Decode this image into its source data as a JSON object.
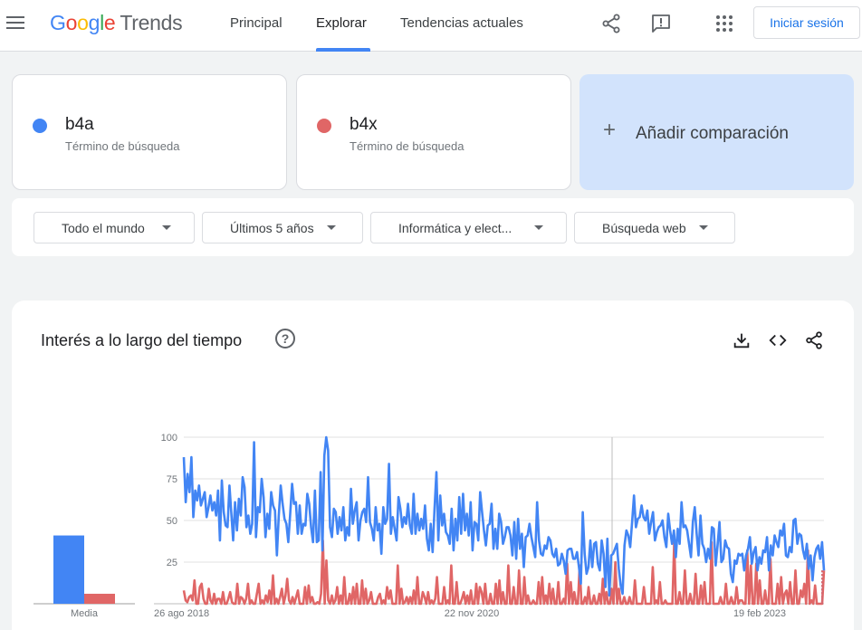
{
  "header": {
    "logo_google": "Google",
    "logo_trends": "Trends",
    "nav": [
      {
        "label": "Principal",
        "active": false
      },
      {
        "label": "Explorar",
        "active": true
      },
      {
        "label": "Tendencias actuales",
        "active": false
      }
    ],
    "signin_label": "Iniciar sesión",
    "icons": [
      "menu-icon",
      "share-icon",
      "feedback-icon",
      "apps-icon"
    ]
  },
  "terms": [
    {
      "name": "b4a",
      "type": "Término de búsqueda",
      "color": "#4285f4"
    },
    {
      "name": "b4x",
      "type": "Término de búsqueda",
      "color": "#e06666"
    }
  ],
  "add_comparison": "Añadir comparación",
  "filters": [
    {
      "label": "Todo el mundo"
    },
    {
      "label": "Últimos 5 años"
    },
    {
      "label": "Informática y elect..."
    },
    {
      "label": "Búsqueda web"
    }
  ],
  "chart_section": {
    "title": "Interés a lo largo del tiempo",
    "help_glyph": "?",
    "icons": [
      "download-icon",
      "embed-icon",
      "share-icon"
    ]
  },
  "chart_data": {
    "type": "line",
    "average_label": "Media",
    "averages": [
      {
        "term": "b4a",
        "value": 41
      },
      {
        "term": "b4x",
        "value": 6
      }
    ],
    "ylim": [
      0,
      100
    ],
    "yticks": [
      25,
      50,
      75,
      100
    ],
    "xticks": [
      "26 ago 2018",
      "22 nov 2020",
      "19 feb 2023"
    ],
    "series": [
      {
        "name": "b4a",
        "color": "#4285f4",
        "values": [
          88,
          61,
          78,
          67,
          88,
          52,
          68,
          62,
          71,
          59,
          63,
          67,
          52,
          58,
          65,
          56,
          61,
          53,
          68,
          38,
          74,
          55,
          47,
          46,
          71,
          55,
          38,
          61,
          44,
          63,
          53,
          76,
          70,
          46,
          53,
          42,
          48,
          97,
          40,
          58,
          55,
          75,
          64,
          40,
          54,
          45,
          67,
          59,
          56,
          29,
          53,
          71,
          60,
          51,
          48,
          37,
          54,
          72,
          60,
          61,
          42,
          59,
          42,
          48,
          47,
          66,
          60,
          46,
          37,
          68,
          37,
          38,
          79,
          32,
          89,
          100,
          92,
          46,
          40,
          57,
          55,
          42,
          52,
          44,
          58,
          38,
          46,
          41,
          69,
          48,
          56,
          61,
          38,
          50,
          55,
          57,
          49,
          76,
          49,
          45,
          38,
          58,
          44,
          48,
          30,
          58,
          48,
          51,
          84,
          42,
          52,
          45,
          38,
          64,
          57,
          46,
          52,
          48,
          60,
          47,
          42,
          66,
          42,
          54,
          44,
          51,
          45,
          59,
          39,
          32,
          48,
          31,
          57,
          79,
          38,
          65,
          47,
          54,
          43,
          41,
          36,
          57,
          32,
          51,
          38,
          64,
          42,
          66,
          44,
          54,
          41,
          61,
          32,
          49,
          48,
          38,
          67,
          55,
          44,
          35,
          47,
          48,
          60,
          33,
          45,
          33,
          54,
          49,
          36,
          40,
          46,
          46,
          41,
          29,
          49,
          27,
          51,
          33,
          42,
          22,
          40,
          41,
          48,
          40,
          34,
          28,
          61,
          38,
          30,
          29,
          35,
          33,
          40,
          38,
          30,
          28,
          33,
          23,
          24,
          30,
          26,
          18,
          32,
          33,
          33,
          27,
          27,
          31,
          22,
          12,
          55,
          30,
          18,
          22,
          38,
          22,
          36,
          37,
          24,
          20,
          38,
          30,
          10,
          39,
          5,
          29,
          30,
          33,
          36,
          21,
          11,
          6,
          35,
          44,
          41,
          34,
          49,
          65,
          46,
          51,
          52,
          59,
          52,
          50,
          56,
          42,
          49,
          55,
          38,
          43,
          46,
          47,
          50,
          40,
          34,
          54,
          44,
          36,
          44,
          28,
          45,
          36,
          61,
          46,
          47,
          44,
          36,
          28,
          49,
          58,
          42,
          29,
          53,
          36,
          33,
          25,
          33,
          27,
          46,
          45,
          23,
          35,
          49,
          25,
          27,
          38,
          34,
          33,
          18,
          13,
          26,
          24,
          30,
          29,
          30,
          20,
          29,
          33,
          40,
          24,
          31,
          34,
          20,
          28,
          24,
          32,
          31,
          40,
          20,
          35,
          29,
          41,
          37,
          34,
          44,
          41,
          48,
          29,
          28,
          34,
          31,
          50,
          51,
          36,
          42,
          41,
          32,
          27,
          36,
          21,
          29,
          14,
          28,
          33,
          35,
          27,
          37,
          20
        ]
      },
      {
        "name": "b4x",
        "color": "#e06666",
        "values": [
          8,
          2,
          1,
          4,
          5,
          2,
          14,
          0,
          0,
          10,
          12,
          3,
          0,
          0,
          9,
          2,
          0,
          6,
          0,
          3,
          3,
          0,
          7,
          0,
          0,
          3,
          7,
          1,
          0,
          0,
          12,
          0,
          4,
          3,
          0,
          3,
          12,
          0,
          2,
          0,
          0,
          6,
          12,
          0,
          2,
          0,
          5,
          1,
          8,
          0,
          17,
          0,
          3,
          0,
          4,
          9,
          0,
          5,
          15,
          2,
          0,
          4,
          0,
          4,
          8,
          0,
          0,
          0,
          10,
          0,
          11,
          1,
          4,
          0,
          0,
          1,
          0,
          6,
          38,
          0,
          26,
          2,
          0,
          5,
          0,
          2,
          10,
          0,
          5,
          0,
          16,
          0,
          0,
          6,
          0,
          10,
          0,
          12,
          0,
          0,
          14,
          0,
          9,
          0,
          2,
          7,
          0,
          0,
          0,
          4,
          6,
          0,
          2,
          0,
          10,
          3,
          8,
          0,
          0,
          0,
          23,
          0,
          9,
          0,
          1,
          4,
          0,
          4,
          0,
          8,
          0,
          16,
          0,
          0,
          7,
          4,
          0,
          7,
          0,
          2,
          0,
          3,
          16,
          0,
          0,
          0,
          10,
          0,
          2,
          0,
          23,
          0,
          0,
          13,
          0,
          0,
          3,
          7,
          0,
          5,
          0,
          8,
          0,
          0,
          12,
          0,
          10,
          7,
          0,
          12,
          0,
          0,
          6,
          0,
          0,
          12,
          0,
          14,
          0,
          7,
          0,
          0,
          23,
          0,
          0,
          10,
          0,
          0,
          20,
          0,
          0,
          16,
          0,
          5,
          0,
          0,
          2,
          0,
          0,
          13,
          0,
          16,
          0,
          5,
          0,
          12,
          0,
          9,
          0,
          0,
          13,
          0,
          0,
          3,
          0,
          24,
          0,
          13,
          0,
          7,
          0,
          0,
          23,
          0,
          0,
          4,
          0,
          10,
          0,
          0,
          5,
          0,
          0,
          6,
          0,
          15,
          0,
          7,
          0,
          0,
          9,
          0,
          25,
          0,
          9,
          0,
          0,
          4,
          0,
          0,
          4,
          0,
          0,
          14,
          0,
          0,
          0,
          0,
          10,
          0,
          0,
          0,
          0,
          22,
          0,
          2,
          0,
          13,
          0,
          0,
          2,
          0,
          0,
          0,
          0,
          37,
          0,
          0,
          7,
          0,
          0,
          20,
          0,
          0,
          6,
          0,
          0,
          18,
          0,
          0,
          11,
          0,
          13,
          0,
          0,
          0,
          37,
          0,
          0,
          0,
          0,
          4,
          0,
          0,
          12,
          0,
          0,
          4,
          0,
          0,
          10,
          0,
          2,
          2,
          0,
          0,
          32,
          0,
          23,
          0,
          0,
          24,
          0,
          14,
          0,
          0,
          8,
          0,
          0,
          27,
          0,
          0,
          0,
          12,
          0,
          16,
          0,
          6,
          8,
          0,
          13,
          0,
          0,
          20,
          0,
          0,
          8,
          4,
          12,
          0,
          32,
          0,
          2,
          0,
          11,
          0,
          0,
          0,
          0,
          20
        ]
      }
    ]
  }
}
